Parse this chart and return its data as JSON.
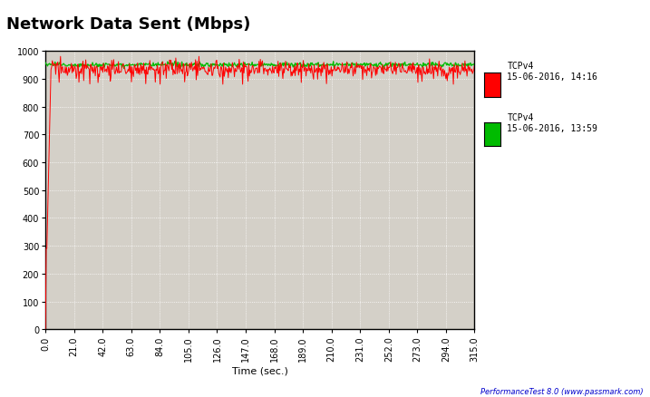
{
  "title": "Network Data Sent (Mbps)",
  "xlabel": "Time (sec.)",
  "ylabel": "",
  "fig_bg_color": "#ffffff",
  "plot_bg_color": "#d4d0c8",
  "xlim": [
    0,
    315
  ],
  "ylim": [
    0,
    1000
  ],
  "xticks": [
    0.0,
    21.0,
    42.0,
    63.0,
    84.0,
    105.0,
    126.0,
    147.0,
    168.0,
    189.0,
    210.0,
    231.0,
    252.0,
    273.0,
    294.0,
    315.0
  ],
  "yticks": [
    0,
    100,
    200,
    300,
    400,
    500,
    600,
    700,
    800,
    900,
    1000
  ],
  "legend1_label": "TCPv4\n15-06-2016, 14:16",
  "legend2_label": "TCPv4\n15-06-2016, 13:59",
  "legend1_color": "#ff0000",
  "legend2_color": "#00bb00",
  "watermark": "PerformanceTest 8.0 (www.passmark.com)",
  "grid_color": "#ffffff",
  "tick_fontsize": 7,
  "title_fontsize": 13,
  "xlabel_fontsize": 8
}
